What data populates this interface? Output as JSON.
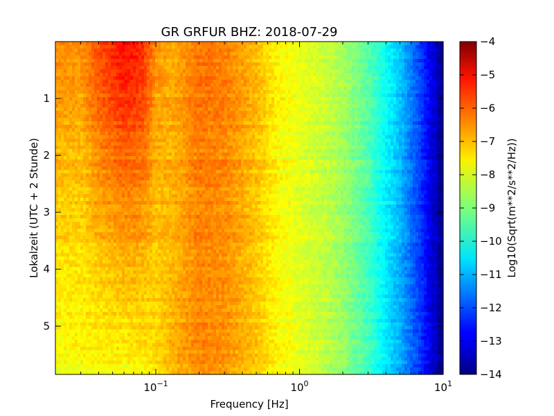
{
  "chart_data": {
    "type": "heatmap",
    "title": "GR GRFUR BHZ: 2018-07-29",
    "xlabel": "Frequency [Hz]",
    "ylabel": "Lokalzeit (UTC + 2 Stunde)",
    "x_scale": "log",
    "xlim": [
      0.02,
      10
    ],
    "x_ticks": [
      {
        "value": 0.1,
        "base": "10",
        "exp": "−1"
      },
      {
        "value": 1,
        "base": "10",
        "exp": "0"
      },
      {
        "value": 10,
        "base": "10",
        "exp": "1"
      }
    ],
    "ylim": [
      0,
      5.85
    ],
    "y_inverted": true,
    "y_ticks": [
      1,
      2,
      3,
      4,
      5
    ],
    "colorbar": {
      "label": "Log10(Sqrt(m**2/s**2/Hz))",
      "colormap": "jet",
      "range": [
        -14,
        -4
      ],
      "ticks": [
        -4,
        -5,
        -6,
        -7,
        -8,
        -9,
        -10,
        -11,
        -12,
        -13,
        -14
      ],
      "tick_labels": [
        "−4",
        "−5",
        "−6",
        "−7",
        "−8",
        "−9",
        "−10",
        "−11",
        "−12",
        "−13",
        "−14"
      ]
    },
    "spectrum_profile": {
      "frequency_hz": [
        0.02,
        0.03,
        0.04,
        0.06,
        0.08,
        0.1,
        0.13,
        0.2,
        0.3,
        0.5,
        0.7,
        1,
        1.5,
        2,
        3,
        4,
        5,
        7,
        9,
        10
      ],
      "log_amplitude_start": [
        -6.6,
        -6.7,
        -6.0,
        -5.3,
        -5.6,
        -6.7,
        -7.0,
        -6.4,
        -6.5,
        -7.1,
        -7.7,
        -8.0,
        -8.3,
        -8.6,
        -9.4,
        -10.2,
        -10.8,
        -12.2,
        -13.4,
        -14.0
      ],
      "log_amplitude_end": [
        -7.9,
        -7.8,
        -7.8,
        -7.8,
        -7.7,
        -7.5,
        -7.0,
        -6.6,
        -6.7,
        -7.2,
        -7.7,
        -8.0,
        -8.4,
        -8.8,
        -9.6,
        -10.5,
        -11.1,
        -12.3,
        -13.4,
        -14.0
      ]
    }
  }
}
